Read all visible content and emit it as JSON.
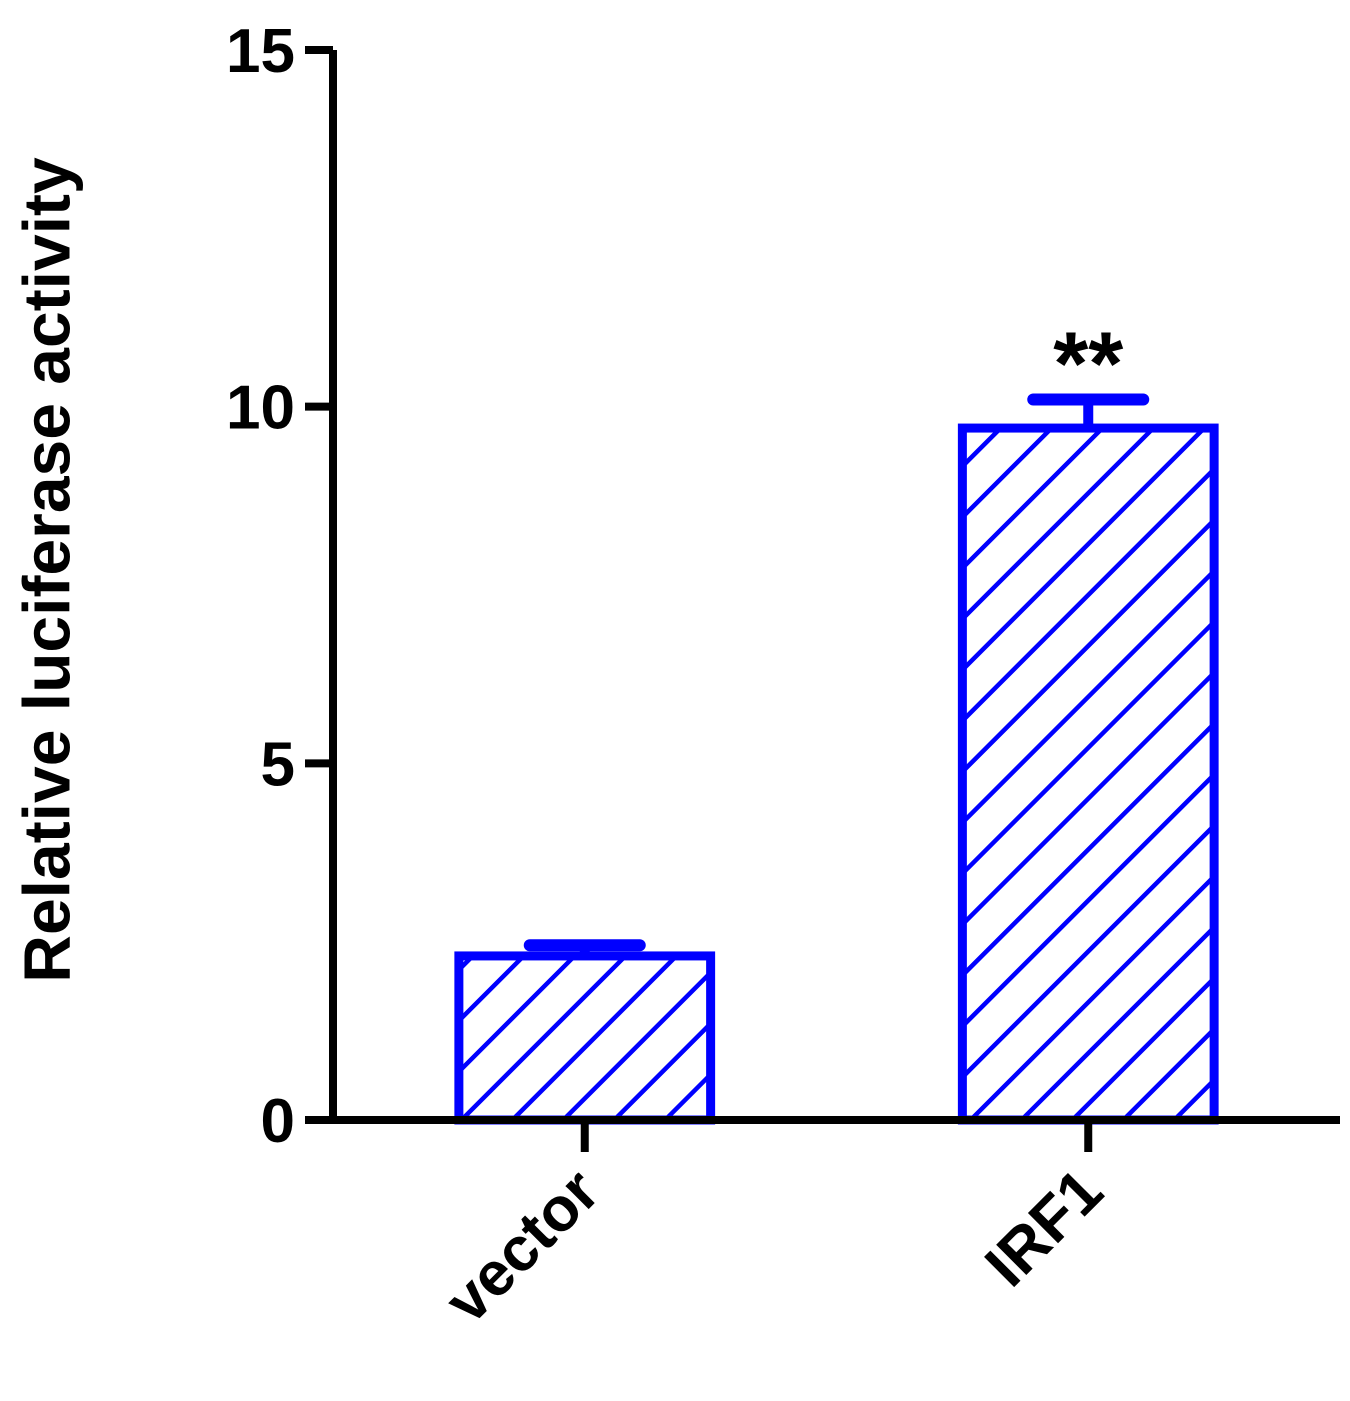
{
  "chart_data": {
    "type": "bar",
    "y_label": "Relative luciferase activity",
    "categories": [
      "vector",
      "IRF1"
    ],
    "values": [
      2.3,
      9.7
    ],
    "errors": [
      0.15,
      0.4
    ],
    "color": "#0000ff",
    "annotations": [
      {
        "category": 1,
        "text": "**"
      }
    ],
    "ylim": [
      0,
      15
    ],
    "yticks": [
      0,
      5,
      10,
      15
    ]
  }
}
